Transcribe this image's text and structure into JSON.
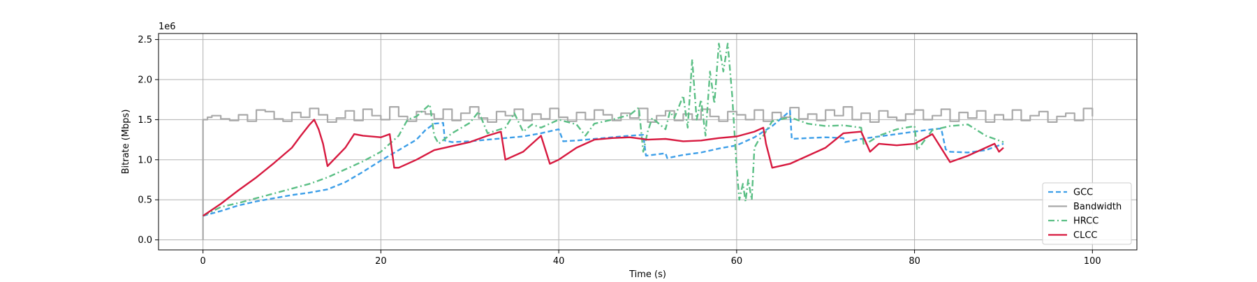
{
  "chart_data": {
    "type": "line",
    "xlabel": "Time (s)",
    "ylabel": "Bitrate (Mbps)",
    "y_offset_text": "1e6",
    "xlim": [
      -5,
      105
    ],
    "ylim": [
      -125000,
      2575000
    ],
    "xticks": [
      0,
      20,
      40,
      60,
      80,
      100
    ],
    "xtick_labels": [
      "0",
      "20",
      "40",
      "60",
      "80",
      "100"
    ],
    "yticks": [
      0,
      500000,
      1000000,
      1500000,
      2000000,
      2500000
    ],
    "ytick_labels": [
      "0.0",
      "0.5",
      "1.0",
      "1.5",
      "2.0",
      "2.5"
    ],
    "grid": true,
    "legend_position": "lower-right",
    "series": [
      {
        "name": "GCC",
        "color": "#3c9ee8",
        "style": "dashed",
        "x": [
          0,
          2,
          4,
          6,
          8,
          10,
          12,
          14,
          16,
          18,
          20,
          22,
          24,
          25,
          26,
          27,
          27.2,
          28,
          30,
          32,
          34,
          36,
          38,
          40,
          40.5,
          42,
          44,
          46,
          48,
          49.5,
          49.8,
          52,
          52.2,
          54,
          56,
          58,
          60,
          62,
          64,
          65.5,
          66,
          66.2,
          68,
          70,
          72,
          72.2,
          74,
          76,
          78,
          80,
          82,
          83,
          83.5,
          84,
          86,
          88,
          89.5,
          90
        ],
        "y": [
          300000,
          360000,
          430000,
          480000,
          520000,
          560000,
          590000,
          630000,
          720000,
          850000,
          990000,
          1120000,
          1250000,
          1370000,
          1450000,
          1460000,
          1240000,
          1220000,
          1230000,
          1250000,
          1270000,
          1290000,
          1330000,
          1380000,
          1230000,
          1240000,
          1260000,
          1280000,
          1300000,
          1310000,
          1050000,
          1080000,
          1020000,
          1060000,
          1090000,
          1140000,
          1180000,
          1280000,
          1420000,
          1560000,
          1610000,
          1260000,
          1270000,
          1280000,
          1270000,
          1220000,
          1260000,
          1290000,
          1320000,
          1350000,
          1380000,
          1390000,
          1130000,
          1100000,
          1090000,
          1120000,
          1180000,
          1200000
        ]
      },
      {
        "name": "Bandwidth",
        "color": "#a9a9a9",
        "style": "steps",
        "x": [
          0,
          0,
          0.5,
          1,
          2,
          3,
          4,
          5,
          6,
          7,
          8,
          9,
          10,
          11,
          12,
          13,
          14,
          15,
          16,
          17,
          18,
          19,
          20,
          21,
          22,
          23,
          24,
          25,
          26,
          27,
          28,
          29,
          30,
          31,
          32,
          33,
          34,
          35,
          36,
          37,
          38,
          39,
          40,
          41,
          42,
          43,
          44,
          45,
          46,
          47,
          48,
          49,
          50,
          51,
          52,
          53,
          54,
          55,
          56,
          57,
          58,
          59,
          60,
          61,
          62,
          63,
          64,
          65,
          66,
          67,
          68,
          69,
          70,
          71,
          72,
          73,
          74,
          75,
          76,
          77,
          78,
          79,
          80,
          81,
          82,
          83,
          84,
          85,
          86,
          87,
          88,
          89,
          90,
          91,
          92,
          93,
          94,
          95,
          96,
          97,
          98,
          99,
          100
        ],
        "y": [
          0,
          1500000,
          1530000,
          1550000,
          1510000,
          1490000,
          1560000,
          1480000,
          1620000,
          1600000,
          1510000,
          1480000,
          1590000,
          1530000,
          1640000,
          1560000,
          1470000,
          1520000,
          1610000,
          1490000,
          1630000,
          1550000,
          1500000,
          1660000,
          1540000,
          1480000,
          1600000,
          1570000,
          1510000,
          1630000,
          1490000,
          1580000,
          1660000,
          1520000,
          1470000,
          1600000,
          1550000,
          1630000,
          1490000,
          1570000,
          1510000,
          1640000,
          1530000,
          1480000,
          1590000,
          1500000,
          1620000,
          1560000,
          1490000,
          1580000,
          1520000,
          1640000,
          1470000,
          1550000,
          1610000,
          1490000,
          1570000,
          1500000,
          1630000,
          1540000,
          1480000,
          1600000,
          1560000,
          1500000,
          1620000,
          1480000,
          1590000,
          1530000,
          1650000,
          1510000,
          1570000,
          1490000,
          1620000,
          1550000,
          1660000,
          1500000,
          1580000,
          1470000,
          1610000,
          1530000,
          1490000,
          1570000,
          1620000,
          1500000,
          1550000,
          1630000,
          1480000,
          1590000,
          1520000,
          1610000,
          1470000,
          1560000,
          1500000,
          1620000,
          1490000,
          1550000,
          1600000,
          1470000,
          1540000,
          1580000,
          1490000,
          1640000,
          1540000
        ]
      },
      {
        "name": "HRCC",
        "color": "#5bbf85",
        "style": "dashdot",
        "x": [
          0,
          2,
          4,
          6,
          8,
          10,
          12,
          14,
          16,
          18,
          20,
          22,
          23,
          24,
          25.5,
          26,
          26.5,
          28,
          30,
          31,
          32,
          34,
          35,
          36,
          37,
          38,
          40,
          42,
          43,
          44,
          46,
          48,
          49,
          49.5,
          50,
          50.5,
          52,
          52.5,
          53,
          54,
          54.5,
          55,
          55.5,
          56,
          56.5,
          57,
          57.5,
          58,
          58.5,
          59,
          59.5,
          60,
          60.3,
          60.7,
          61,
          61.3,
          61.7,
          62,
          62.5,
          63,
          64,
          66,
          68,
          70,
          72,
          74,
          74.3,
          76,
          78,
          80,
          80.3,
          82,
          84,
          86,
          88,
          90
        ],
        "y": [
          300000,
          410000,
          460000,
          520000,
          580000,
          640000,
          700000,
          780000,
          880000,
          980000,
          1100000,
          1300000,
          1500000,
          1540000,
          1690000,
          1300000,
          1200000,
          1330000,
          1460000,
          1600000,
          1330000,
          1400000,
          1580000,
          1350000,
          1440000,
          1400000,
          1500000,
          1440000,
          1300000,
          1450000,
          1500000,
          1560000,
          1650000,
          1100000,
          1350000,
          1520000,
          1380000,
          1600000,
          1520000,
          1800000,
          1400000,
          2250000,
          1500000,
          1750000,
          1300000,
          2100000,
          1700000,
          2450000,
          2100000,
          2450000,
          1800000,
          900000,
          500000,
          700000,
          480000,
          750000,
          500000,
          1150000,
          1250000,
          1300000,
          1480000,
          1530000,
          1450000,
          1420000,
          1430000,
          1400000,
          1180000,
          1300000,
          1380000,
          1420000,
          1120000,
          1370000,
          1420000,
          1440000,
          1300000,
          1220000
        ]
      },
      {
        "name": "CLCC",
        "color": "#d7193f",
        "style": "solid",
        "x": [
          0,
          2,
          4,
          6,
          8,
          10,
          11,
          12,
          12.5,
          13,
          13.5,
          14,
          16,
          17,
          18,
          20,
          21,
          21.5,
          22,
          24,
          26,
          28,
          30,
          32,
          33.5,
          34,
          36,
          37,
          38,
          39,
          40,
          42,
          44,
          46,
          48,
          50,
          52,
          54,
          56,
          58,
          60,
          62,
          63,
          63.3,
          64,
          66,
          68,
          70,
          72,
          74,
          75,
          76,
          78,
          80,
          82,
          84,
          86,
          88,
          89,
          89.5,
          90
        ],
        "y": [
          300000,
          450000,
          620000,
          780000,
          960000,
          1150000,
          1300000,
          1440000,
          1500000,
          1380000,
          1200000,
          920000,
          1150000,
          1320000,
          1300000,
          1280000,
          1320000,
          900000,
          900000,
          1000000,
          1120000,
          1170000,
          1220000,
          1300000,
          1350000,
          1000000,
          1100000,
          1200000,
          1300000,
          950000,
          1000000,
          1150000,
          1250000,
          1270000,
          1280000,
          1250000,
          1260000,
          1230000,
          1240000,
          1270000,
          1290000,
          1350000,
          1400000,
          1200000,
          900000,
          950000,
          1050000,
          1150000,
          1330000,
          1350000,
          1100000,
          1200000,
          1180000,
          1200000,
          1320000,
          970000,
          1050000,
          1150000,
          1200000,
          1100000,
          1150000
        ]
      }
    ]
  }
}
